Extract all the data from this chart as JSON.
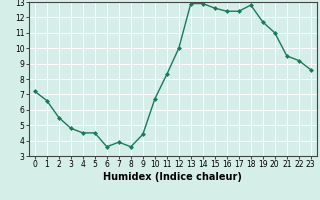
{
  "x": [
    0,
    1,
    2,
    3,
    4,
    5,
    6,
    7,
    8,
    9,
    10,
    11,
    12,
    13,
    14,
    15,
    16,
    17,
    18,
    19,
    20,
    21,
    22,
    23
  ],
  "y": [
    7.2,
    6.6,
    5.5,
    4.8,
    4.5,
    4.5,
    3.6,
    3.9,
    3.6,
    4.4,
    6.7,
    8.3,
    10.0,
    12.9,
    12.9,
    12.6,
    12.4,
    12.4,
    12.8,
    11.7,
    11.0,
    9.5,
    9.2,
    8.6
  ],
  "line_color": "#1a7a5e",
  "marker": "D",
  "markersize": 2,
  "linewidth": 1.0,
  "xlabel": "Humidex (Indice chaleur)",
  "xlim": [
    -0.5,
    23.5
  ],
  "ylim": [
    3,
    13
  ],
  "yticks": [
    3,
    4,
    5,
    6,
    7,
    8,
    9,
    10,
    11,
    12,
    13
  ],
  "xticks": [
    0,
    1,
    2,
    3,
    4,
    5,
    6,
    7,
    8,
    9,
    10,
    11,
    12,
    13,
    14,
    15,
    16,
    17,
    18,
    19,
    20,
    21,
    22,
    23
  ],
  "bg_color": "#d5eee8",
  "grid_color": "#ffffff",
  "tick_label_fontsize": 5.5,
  "xlabel_fontsize": 7,
  "xlabel_fontweight": "bold"
}
